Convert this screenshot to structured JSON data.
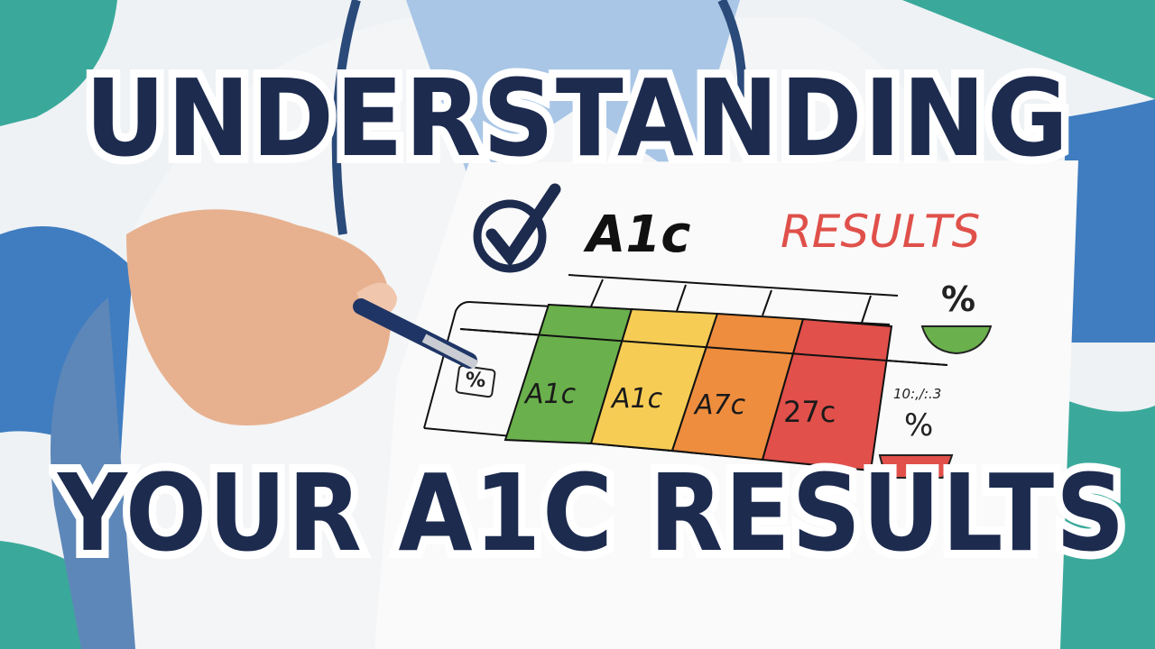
{
  "headline": {
    "line1": "UNDERSTANDING",
    "line2": "YOUR A1C RESULTS"
  },
  "card": {
    "logo_text": "A1c",
    "results_text": "RESULTS",
    "percent_box": "%",
    "cells": [
      "A1c",
      "A1c",
      "A7c",
      "27c"
    ],
    "right_percent_top": "%",
    "right_small_text": "10:,/:.3",
    "right_percent_bottom": "%"
  },
  "colors": {
    "navy": "#1d2b4f",
    "teal": "#3aa99b",
    "blue": "#3f7dc0",
    "green": "#6ab04c",
    "yellow": "#f6cc55",
    "orange": "#ee8d3e",
    "red": "#e1504a",
    "results_red": "#e0504a"
  }
}
